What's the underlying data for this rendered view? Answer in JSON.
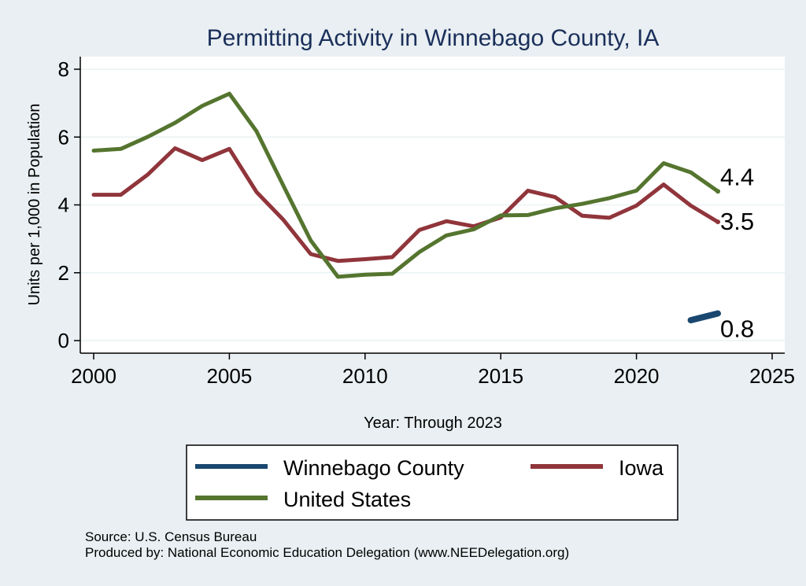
{
  "chart_data": {
    "type": "line",
    "title": "Permitting Activity in Winnebago County, IA",
    "xlabel": "Year: Through 2023",
    "ylabel": "Units per 1,000 in Population",
    "xlim": [
      2000,
      2025
    ],
    "ylim": [
      0,
      8
    ],
    "x_ticks": [
      2000,
      2005,
      2010,
      2015,
      2020,
      2025
    ],
    "y_ticks": [
      0,
      2,
      4,
      6,
      8
    ],
    "x_tick_labels": [
      "2000",
      "2005",
      "2010",
      "2015",
      "2020",
      "2025"
    ],
    "y_tick_labels": [
      "0",
      "2",
      "4",
      "6",
      "8"
    ],
    "grid": true,
    "legend_position": "bottom",
    "series": [
      {
        "name": "Winnebago County",
        "color": "#1a476f",
        "x": [
          2022,
          2023
        ],
        "values": [
          0.6,
          0.8
        ],
        "end_label": "0.8"
      },
      {
        "name": "Iowa",
        "color": "#90353b",
        "x": [
          2000,
          2001,
          2002,
          2003,
          2004,
          2005,
          2006,
          2007,
          2008,
          2009,
          2010,
          2011,
          2012,
          2013,
          2014,
          2015,
          2016,
          2017,
          2018,
          2019,
          2020,
          2021,
          2022,
          2023
        ],
        "values": [
          4.3,
          4.3,
          4.9,
          5.67,
          5.32,
          5.65,
          4.38,
          3.55,
          2.55,
          2.35,
          2.4,
          2.46,
          3.26,
          3.52,
          3.37,
          3.63,
          4.42,
          4.23,
          3.68,
          3.62,
          3.98,
          4.6,
          3.98,
          3.5
        ],
        "end_label": "3.5"
      },
      {
        "name": "United States",
        "color": "#55752f",
        "x": [
          2000,
          2001,
          2002,
          2003,
          2004,
          2005,
          2006,
          2007,
          2008,
          2009,
          2010,
          2011,
          2012,
          2013,
          2014,
          2015,
          2016,
          2017,
          2018,
          2019,
          2020,
          2021,
          2022,
          2023
        ],
        "values": [
          5.6,
          5.65,
          6.01,
          6.42,
          6.92,
          7.28,
          6.17,
          4.55,
          2.95,
          1.88,
          1.94,
          1.97,
          2.61,
          3.1,
          3.28,
          3.69,
          3.7,
          3.9,
          4.03,
          4.2,
          4.42,
          5.23,
          4.96,
          4.4
        ],
        "end_label": "4.4"
      }
    ],
    "legend": [
      {
        "label": "Winnebago County",
        "color": "#1a476f"
      },
      {
        "label": "Iowa",
        "color": "#90353b"
      },
      {
        "label": "United States",
        "color": "#55752f"
      }
    ]
  },
  "footer": {
    "source": "Source: U.S. Census Bureau",
    "produced_by": "Produced by: National Economic Education Delegation (www.NEEDelegation.org)"
  }
}
